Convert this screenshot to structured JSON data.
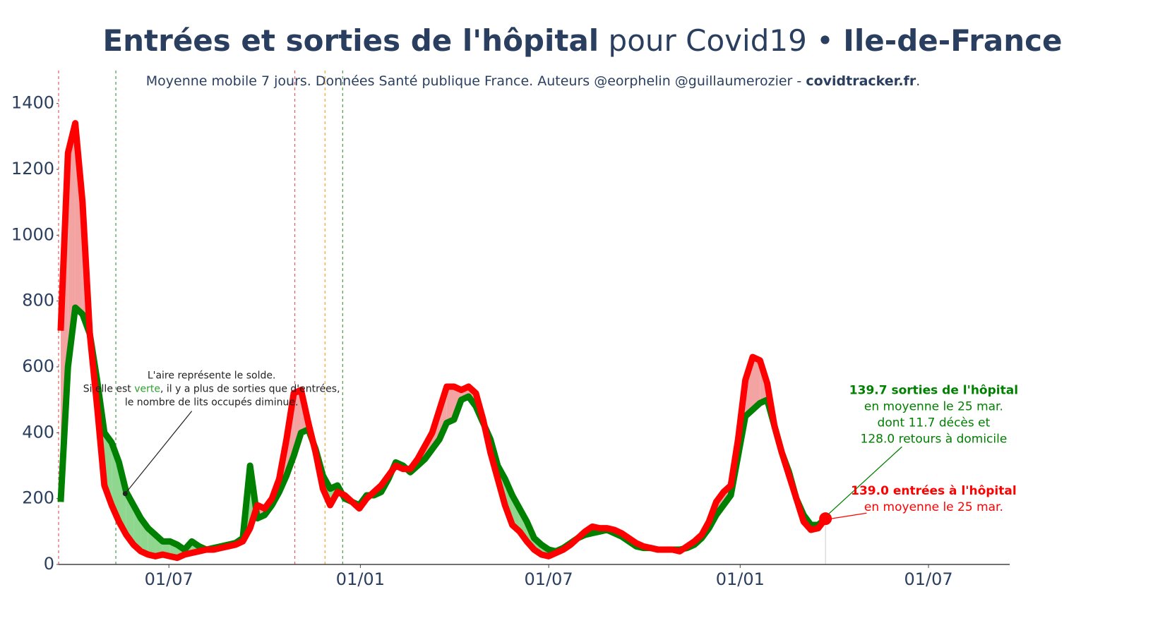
{
  "chart_data": {
    "type": "line",
    "title": [
      "Entrées et sorties de l'hôpital",
      " pour Covid19 • ",
      "Ile-de-France"
    ],
    "subtitle": [
      "Moyenne mobile 7 jours. Données Santé publique France. Auteurs @eorphelin @guillaumerozier - ",
      "covidtracker.fr",
      "."
    ],
    "x": [
      0,
      7,
      14,
      21,
      28,
      35,
      42,
      49,
      56,
      63,
      70,
      77,
      84,
      91,
      98,
      105,
      112,
      119,
      126,
      133,
      140,
      147,
      154,
      161,
      168,
      175,
      182,
      189,
      196,
      203,
      210,
      217,
      224,
      231,
      238,
      245,
      252,
      259,
      266,
      273,
      280,
      287,
      294,
      301,
      308,
      315,
      322,
      329,
      336,
      343,
      350,
      357,
      364,
      371,
      378,
      385,
      392,
      399,
      406,
      413,
      420,
      427,
      434,
      441,
      448,
      455,
      462,
      469,
      476,
      483,
      490,
      497,
      504,
      511,
      518,
      525,
      532,
      539,
      546,
      553,
      560,
      567,
      574,
      581,
      588,
      595,
      602,
      609,
      616,
      623,
      630,
      637,
      644,
      651,
      658,
      665,
      672,
      679,
      686,
      693,
      700,
      707,
      714,
      721,
      728,
      735
    ],
    "series": [
      {
        "color": "#008000",
        "fill": "#8fd68f",
        "values": [
          190,
          600,
          780,
          760,
          700,
          560,
          400,
          370,
          310,
          220,
          180,
          140,
          110,
          90,
          70,
          70,
          60,
          45,
          70,
          55,
          45,
          50,
          55,
          60,
          65,
          80,
          300,
          140,
          150,
          180,
          220,
          270,
          330,
          400,
          410,
          350,
          270,
          230,
          240,
          200,
          190,
          180,
          210,
          210,
          220,
          260,
          310,
          300,
          280,
          300,
          320,
          350,
          380,
          430,
          440,
          500,
          510,
          480,
          430,
          380,
          300,
          260,
          210,
          170,
          130,
          80,
          60,
          45,
          40,
          50,
          65,
          80,
          90,
          95,
          100,
          105,
          95,
          85,
          70,
          55,
          50,
          50,
          45,
          45,
          45,
          45,
          50,
          60,
          80,
          110,
          150,
          180,
          210,
          330,
          450,
          470,
          490,
          500,
          420,
          340,
          280,
          200,
          150,
          120,
          120,
          139.7
        ]
      },
      {
        "color": "#ff0000",
        "fill": "#f4a3a3",
        "values": [
          710,
          1250,
          1340,
          1100,
          700,
          480,
          240,
          180,
          130,
          90,
          60,
          40,
          30,
          25,
          30,
          25,
          20,
          30,
          35,
          40,
          45,
          45,
          50,
          55,
          60,
          70,
          110,
          180,
          170,
          200,
          260,
          380,
          520,
          530,
          430,
          340,
          230,
          180,
          220,
          210,
          190,
          170,
          200,
          220,
          240,
          270,
          300,
          290,
          290,
          320,
          360,
          400,
          470,
          540,
          540,
          530,
          540,
          520,
          440,
          340,
          260,
          180,
          120,
          100,
          70,
          45,
          30,
          25,
          35,
          45,
          60,
          80,
          100,
          115,
          110,
          110,
          105,
          95,
          80,
          65,
          55,
          50,
          45,
          45,
          45,
          40,
          55,
          70,
          90,
          130,
          190,
          220,
          240,
          380,
          560,
          630,
          620,
          550,
          420,
          340,
          270,
          200,
          130,
          105,
          110,
          139.0
        ]
      }
    ],
    "xlim": [
      -2,
      912
    ],
    "xticks": [
      {
        "value": 104,
        "label": "01/07"
      },
      {
        "value": 288,
        "label": "01/01"
      },
      {
        "value": 469,
        "label": "01/07"
      },
      {
        "value": 653,
        "label": "01/01"
      },
      {
        "value": 834,
        "label": "01/07"
      }
    ],
    "ylim": [
      0,
      1500
    ],
    "yticks": [
      0,
      200,
      400,
      600,
      800,
      1000,
      1200,
      1400
    ],
    "vlines": [
      {
        "x": -2,
        "color": "#e06060"
      },
      {
        "x": 53,
        "color": "#4a9a4a"
      },
      {
        "x": 225,
        "color": "#e06060"
      },
      {
        "x": 254,
        "color": "#f0a030"
      },
      {
        "x": 271,
        "color": "#4a9a4a"
      }
    ],
    "note": {
      "line1": "L'aire représente le solde.",
      "line2": [
        "Si elle est ",
        "verte",
        ", il y a plus de sorties que d'entrées,"
      ],
      "line3": "le nombre de lits occupés diminue.",
      "point": [
        62,
        215
      ]
    },
    "label_out": [
      "139.7 sorties de l'hôpital",
      "en moyenne le 25 mar.",
      "dont 11.7 décès et",
      "128.0 retours à domicile"
    ],
    "label_in": [
      "139.0 entrées à l'hôpital",
      "en moyenne le 25 mar."
    ]
  }
}
